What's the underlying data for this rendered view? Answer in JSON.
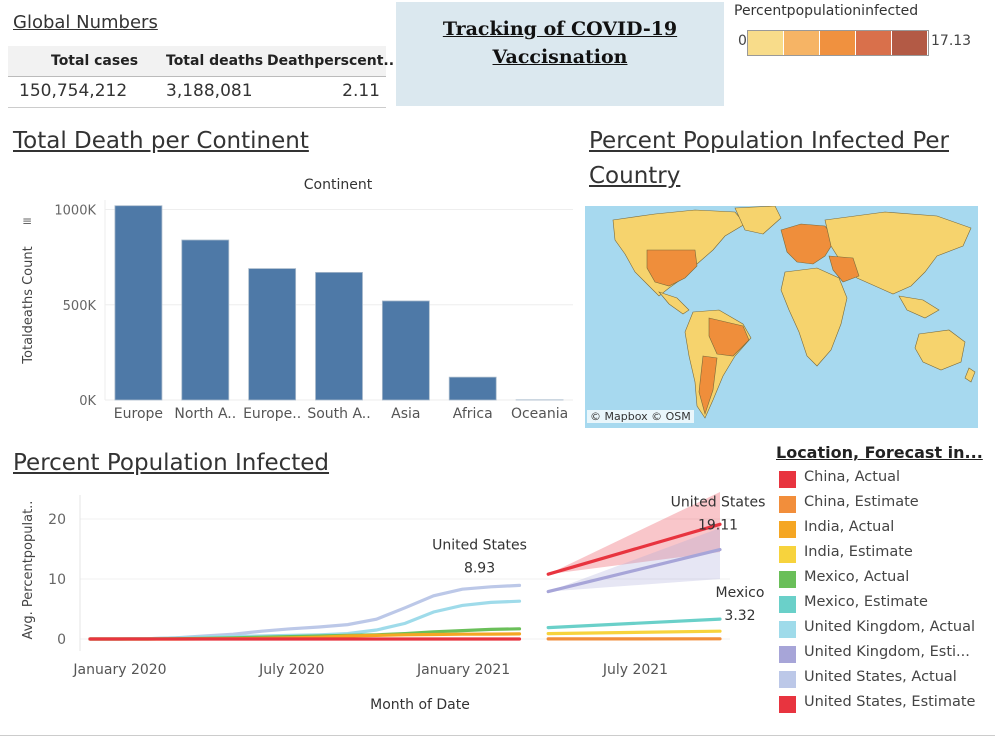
{
  "global_numbers": {
    "title": "Global Numbers",
    "headers": [
      "Total cases",
      "Total deaths",
      "Deathperscent.."
    ],
    "values": [
      "150,754,212",
      "3,188,081",
      "2.11"
    ]
  },
  "banner": {
    "line1": "Tracking of COVID-19",
    "line2": "Vaccisnation"
  },
  "color_legend": {
    "title": "Percentpopulationinfected",
    "min": "0.00",
    "max": "17.13",
    "colors": [
      "#f8dc8a",
      "#f6b465",
      "#f0913f",
      "#d9704b",
      "#b35a45"
    ]
  },
  "map": {
    "title_line1": "Percent Population Infected Per",
    "title_line2": "Country",
    "attribution": "© Mapbox  © OSM",
    "ocean_color": "#a7d9ef",
    "land_color": "#f6d36d",
    "high_color": "#ef8e3b"
  },
  "chart_data": [
    {
      "type": "bar",
      "title": "Total Death per Continent",
      "header": "Continent",
      "categories": [
        "Europe",
        "North A..",
        "Europe..",
        "South A..",
        "Asia",
        "Africa",
        "Oceania"
      ],
      "values": [
        1020000,
        840000,
        690000,
        670000,
        520000,
        120000,
        1000
      ],
      "ylabel": "Totaldeaths Count",
      "yticks": [
        "0K",
        "500K",
        "1000K"
      ],
      "ylim": [
        0,
        1050000
      ],
      "color": "#4e79a7"
    },
    {
      "type": "line",
      "title": "Percent Population Infected",
      "xlabel": "Month of Date",
      "ylabel": "Avg. Percentpopulat..",
      "xticks": [
        "January 2020",
        "July 2020",
        "January 2021",
        "July 2021"
      ],
      "yticks": [
        "0",
        "10",
        "20"
      ],
      "ylim": [
        -1,
        24
      ],
      "legend_title": "Location, Forecast in...",
      "legend": [
        {
          "name": "China, Actual",
          "color": "#e8343f"
        },
        {
          "name": "China, Estimate",
          "color": "#f28e3b"
        },
        {
          "name": "India, Actual",
          "color": "#f5a623"
        },
        {
          "name": "India, Estimate",
          "color": "#f7d33d"
        },
        {
          "name": "Mexico, Actual",
          "color": "#6abf59"
        },
        {
          "name": "Mexico, Estimate",
          "color": "#6ad0c9"
        },
        {
          "name": "United Kingdom, Actual",
          "color": "#9fdbea"
        },
        {
          "name": "United Kingdom, Esti...",
          "color": "#a7a5d8"
        },
        {
          "name": "United States, Actual",
          "color": "#bcc8e8"
        },
        {
          "name": "United States, Estimate",
          "color": "#e8343f"
        }
      ],
      "series": [
        {
          "name": "United States, Actual",
          "color": "#bcc8e8",
          "x": [
            0,
            1,
            2,
            3,
            4,
            5,
            6,
            7,
            8,
            9,
            10,
            11,
            12,
            13,
            14,
            15
          ],
          "y": [
            0,
            0,
            0.05,
            0.2,
            0.5,
            0.8,
            1.3,
            1.7,
            2.0,
            2.4,
            3.3,
            5.2,
            7.2,
            8.3,
            8.7,
            8.93
          ]
        },
        {
          "name": "United Kingdom, Actual",
          "color": "#9fdbea",
          "x": [
            0,
            1,
            2,
            3,
            4,
            5,
            6,
            7,
            8,
            9,
            10,
            11,
            12,
            13,
            14,
            15
          ],
          "y": [
            0,
            0,
            0.05,
            0.2,
            0.35,
            0.45,
            0.5,
            0.6,
            0.7,
            0.9,
            1.5,
            2.6,
            4.5,
            5.6,
            6.1,
            6.3
          ]
        },
        {
          "name": "Mexico, Actual",
          "color": "#6abf59",
          "x": [
            0,
            1,
            2,
            3,
            4,
            5,
            6,
            7,
            8,
            9,
            10,
            11,
            12,
            13,
            14,
            15
          ],
          "y": [
            0,
            0,
            0,
            0.05,
            0.1,
            0.2,
            0.3,
            0.4,
            0.5,
            0.6,
            0.7,
            0.9,
            1.2,
            1.4,
            1.6,
            1.7
          ]
        },
        {
          "name": "India, Actual",
          "color": "#f5a623",
          "x": [
            0,
            1,
            2,
            3,
            4,
            5,
            6,
            7,
            8,
            9,
            10,
            11,
            12,
            13,
            14,
            15
          ],
          "y": [
            0,
            0,
            0,
            0,
            0.02,
            0.05,
            0.1,
            0.2,
            0.3,
            0.5,
            0.6,
            0.7,
            0.75,
            0.8,
            0.82,
            0.85
          ]
        },
        {
          "name": "China, Actual",
          "color": "#e8343f",
          "x": [
            0,
            1,
            2,
            3,
            4,
            5,
            6,
            7,
            8,
            9,
            10,
            11,
            12,
            13,
            14,
            15
          ],
          "y": [
            0,
            0,
            0,
            0,
            0,
            0,
            0,
            0,
            0,
            0,
            0,
            0,
            0,
            0,
            0,
            0
          ]
        },
        {
          "name": "United States, Estimate",
          "color": "#e8343f",
          "x": [
            16,
            22
          ],
          "y": [
            10.8,
            19.11
          ],
          "band_low": [
            10.8,
            14.5
          ],
          "band_high": [
            10.8,
            24.5
          ]
        },
        {
          "name": "United Kingdom, Estimate",
          "color": "#a7a5d8",
          "x": [
            16,
            22
          ],
          "y": [
            7.9,
            14.9
          ],
          "band_low": [
            7.9,
            10.0
          ],
          "band_high": [
            7.9,
            18.5
          ]
        },
        {
          "name": "Mexico, Estimate",
          "color": "#6ad0c9",
          "x": [
            16,
            22
          ],
          "y": [
            1.9,
            3.32
          ]
        },
        {
          "name": "India, Estimate",
          "color": "#f7d33d",
          "x": [
            16,
            22
          ],
          "y": [
            0.9,
            1.3
          ]
        },
        {
          "name": "China, Estimate",
          "color": "#f28e3b",
          "x": [
            16,
            22
          ],
          "y": [
            0.02,
            0.03
          ]
        }
      ],
      "annotations": [
        {
          "label": "United States",
          "value": "8.93",
          "x": 15,
          "y": 8.93,
          "pos": "above"
        },
        {
          "label": "United States",
          "value": "19.11",
          "x": 22,
          "y": 19.11,
          "pos": "above"
        },
        {
          "label": "Mexico",
          "value": "3.32",
          "x": 22,
          "y": 3.32,
          "pos": "above"
        }
      ]
    }
  ]
}
